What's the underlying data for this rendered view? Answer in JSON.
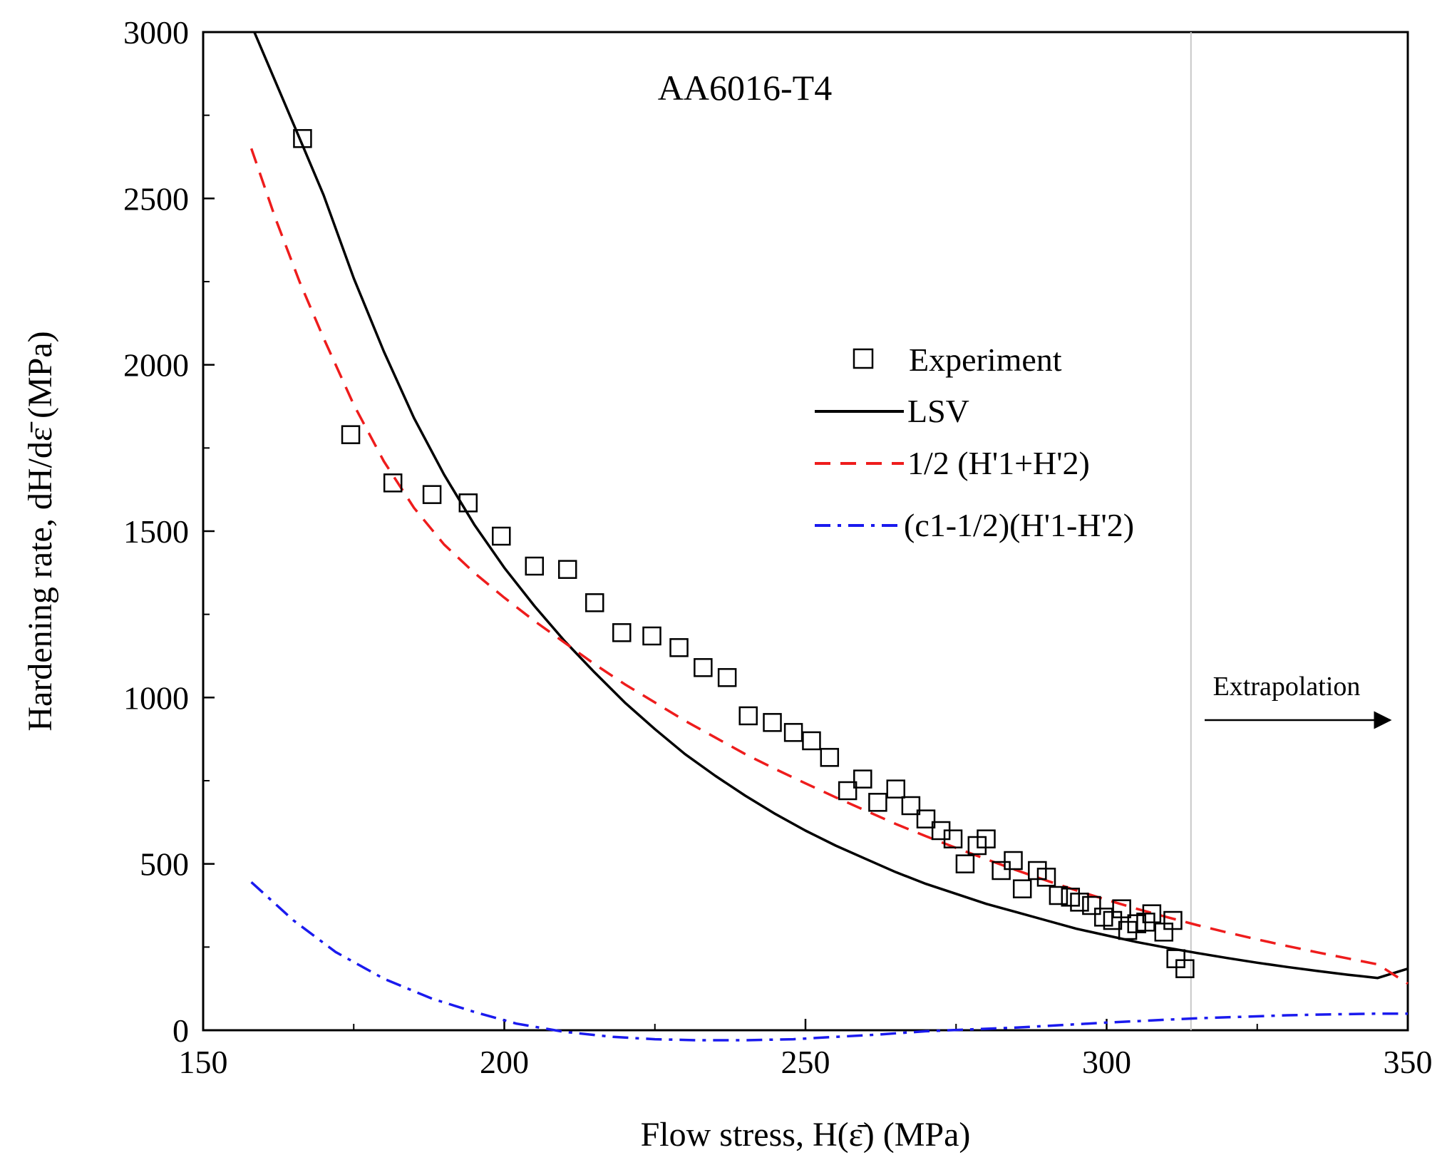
{
  "chart_data": {
    "type": "scatter+line",
    "title": "AA6016-T4",
    "xlabel": "Flow stress, H(ε̄) (MPa)",
    "ylabel": "Hardening rate, dH/dε̄ (MPa)",
    "xlim": [
      150,
      350
    ],
    "ylim": [
      0,
      3000
    ],
    "x_ticks": [
      150,
      200,
      250,
      300,
      350
    ],
    "y_ticks": [
      0,
      500,
      1000,
      1500,
      2000,
      2500,
      3000
    ],
    "legend_position": "center-right",
    "annotation": {
      "text": "Extrapolation",
      "at_x": 314
    },
    "series": [
      {
        "name": "Experiment",
        "legend_label": "Experiment",
        "style": "open-square",
        "color": "#000000",
        "x": [
          166.5,
          174.5,
          181.5,
          188,
          194,
          199.5,
          205,
          210.5,
          215,
          219.5,
          224.5,
          229,
          233,
          237,
          240.5,
          244.5,
          248,
          251,
          254,
          257,
          259.5,
          262,
          265,
          267.5,
          270,
          272.5,
          274.5,
          276.5,
          278.5,
          280,
          282.5,
          284.5,
          286,
          288.5,
          290,
          292,
          294,
          295.5,
          297.5,
          299.5,
          301,
          302.5,
          303.5,
          305,
          306.5,
          307.5,
          309.5,
          311,
          311.5,
          313
        ],
        "y": [
          2680,
          1790,
          1645,
          1610,
          1585,
          1485,
          1395,
          1385,
          1285,
          1195,
          1185,
          1150,
          1090,
          1060,
          945,
          925,
          895,
          870,
          820,
          720,
          755,
          685,
          725,
          675,
          635,
          600,
          575,
          500,
          555,
          575,
          480,
          510,
          425,
          480,
          460,
          405,
          400,
          385,
          375,
          340,
          330,
          365,
          300,
          320,
          325,
          350,
          295,
          330,
          215,
          185
        ]
      },
      {
        "name": "LSV",
        "legend_label": "LSV",
        "style": "solid",
        "color": "#000000",
        "x": [
          158.5,
          162.5,
          166.5,
          170,
          175,
          180,
          185,
          190,
          195,
          200,
          205,
          210,
          215,
          220,
          225,
          230,
          235,
          240,
          245,
          250,
          255,
          260,
          265,
          270,
          275,
          280,
          285,
          290,
          295,
          300,
          305,
          310,
          315,
          320,
          325,
          330,
          335,
          340,
          345,
          350
        ],
        "y": [
          3000,
          2830,
          2660,
          2510,
          2260,
          2040,
          1840,
          1670,
          1520,
          1390,
          1275,
          1170,
          1075,
          985,
          905,
          830,
          765,
          705,
          650,
          600,
          555,
          515,
          475,
          440,
          410,
          380,
          355,
          330,
          305,
          285,
          265,
          248,
          232,
          217,
          203,
          190,
          178,
          167,
          157,
          185
        ]
      },
      {
        "name": "1/2 (H'1+H'2)",
        "legend_label": "1/2 (H'1+H'2)",
        "style": "dashed",
        "color": "#ee1c1c",
        "x": [
          158,
          162,
          166,
          170,
          175,
          180,
          185,
          190,
          195,
          200,
          205,
          210,
          215,
          220,
          225,
          230,
          235,
          240,
          245,
          250,
          255,
          260,
          265,
          270,
          275,
          280,
          285,
          290,
          295,
          300,
          305,
          310,
          315,
          320,
          325,
          330,
          335,
          340,
          345,
          350
        ],
        "y": [
          2650,
          2440,
          2250,
          2080,
          1880,
          1710,
          1570,
          1460,
          1375,
          1300,
          1230,
          1165,
          1100,
          1040,
          985,
          930,
          880,
          830,
          785,
          742,
          700,
          660,
          620,
          583,
          548,
          514,
          481,
          450,
          420,
          392,
          365,
          340,
          316,
          294,
          273,
          253,
          234,
          216,
          198,
          140
        ]
      },
      {
        "name": "(c1-1/2)(H'1-H'2)",
        "legend_label": "(c1-1/2)(H'1-H'2)",
        "style": "dash-dot",
        "color": "#1a1aee",
        "x": [
          158,
          165,
          172,
          180,
          188,
          195,
          202,
          210,
          218,
          225,
          232,
          240,
          248,
          255,
          262,
          270,
          278,
          285,
          292,
          300,
          308,
          315,
          322,
          330,
          338,
          345,
          350
        ],
        "y": [
          445,
          330,
          235,
          155,
          95,
          55,
          20,
          -5,
          -20,
          -27,
          -30,
          -30,
          -27,
          -20,
          -13,
          -3,
          3,
          8,
          15,
          23,
          30,
          36,
          40,
          45,
          48,
          50,
          50
        ]
      }
    ]
  }
}
